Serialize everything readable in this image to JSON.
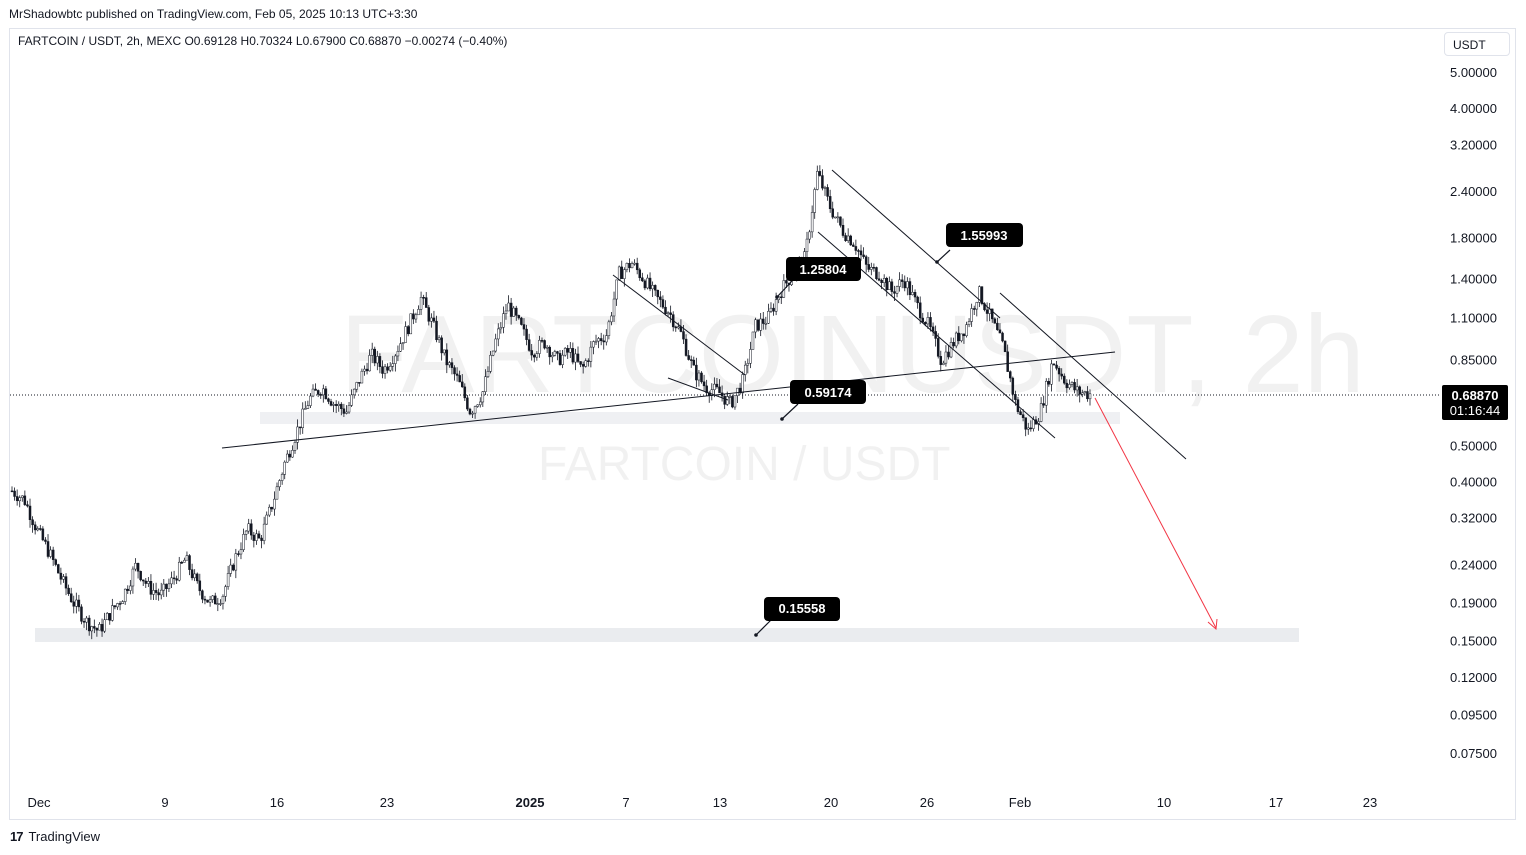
{
  "publisher": "MrShadowbtc published on TradingView.com, Feb 05, 2025 10:13 UTC+3:30",
  "symbol_line": "FARTCOIN / USDT, 2h, MEXC  O0.69128  H0.70324  L0.67900  C0.68870  −0.00274 (−0.40%)",
  "currency": "USDT",
  "watermark": {
    "main": "FARTCOINUSDT, 2h",
    "sub": "FARTCOIN / USDT"
  },
  "footer": {
    "brand": "TradingView",
    "logo": "17"
  },
  "last_price": {
    "value": "0.68870",
    "countdown": "01:16:44",
    "color": "#000000"
  },
  "chart_data": {
    "type": "candlestick",
    "title": "FARTCOIN / USDT, 2h, MEXC",
    "yscale": "log",
    "ylim": [
      0.065,
      6.5
    ],
    "y_ticks": [
      "5.00000",
      "4.00000",
      "3.20000",
      "2.40000",
      "1.80000",
      "1.40000",
      "1.10000",
      "0.85000",
      "0.50000",
      "0.40000",
      "0.32000",
      "0.24000",
      "0.19000",
      "0.15000",
      "0.12000",
      "0.09500",
      "0.07500"
    ],
    "x_ticks": [
      {
        "label": "Dec",
        "bold": false
      },
      {
        "label": "9",
        "bold": false
      },
      {
        "label": "16",
        "bold": false
      },
      {
        "label": "23",
        "bold": false
      },
      {
        "label": "2025",
        "bold": true
      },
      {
        "label": "7",
        "bold": false
      },
      {
        "label": "13",
        "bold": false
      },
      {
        "label": "20",
        "bold": false
      },
      {
        "label": "26",
        "bold": false
      },
      {
        "label": "Feb",
        "bold": false
      },
      {
        "label": "10",
        "bold": false
      },
      {
        "label": "17",
        "bold": false
      },
      {
        "label": "23",
        "bold": false
      }
    ],
    "ohlc": {
      "open": 0.69128,
      "high": 0.70324,
      "low": 0.679,
      "close": 0.6887,
      "change": -0.00274,
      "change_pct": -0.4
    },
    "price_path": [
      0.38,
      0.36,
      0.3,
      0.26,
      0.22,
      0.19,
      0.17,
      0.16,
      0.18,
      0.2,
      0.24,
      0.21,
      0.2,
      0.22,
      0.25,
      0.21,
      0.19,
      0.2,
      0.25,
      0.3,
      0.28,
      0.35,
      0.45,
      0.55,
      0.67,
      0.72,
      0.65,
      0.62,
      0.75,
      0.88,
      0.8,
      0.9,
      1.05,
      1.25,
      1.05,
      0.85,
      0.75,
      0.62,
      0.7,
      0.95,
      1.2,
      1.05,
      0.9,
      0.95,
      0.85,
      0.9,
      0.8,
      0.95,
      1.0,
      1.45,
      1.55,
      1.4,
      1.25,
      1.15,
      1.0,
      0.8,
      0.72,
      0.7,
      0.65,
      0.75,
      1.05,
      1.1,
      1.3,
      1.45,
      1.6,
      2.7,
      2.2,
      1.9,
      1.75,
      1.5,
      1.45,
      1.3,
      1.4,
      1.2,
      1.05,
      0.85,
      0.95,
      1.05,
      1.3,
      1.1,
      0.92,
      0.65,
      0.55,
      0.62,
      0.85,
      0.75,
      0.7,
      0.69
    ],
    "annotations": [
      {
        "label": "1.55993",
        "price": 1.55993
      },
      {
        "label": "1.25804",
        "price": 1.25804
      },
      {
        "label": "0.59174",
        "price": 0.59174
      },
      {
        "label": "0.15558",
        "price": 0.15558
      }
    ],
    "support_zone": [
      0.147,
      0.163
    ],
    "projection_target": 0.155,
    "grid": false
  }
}
